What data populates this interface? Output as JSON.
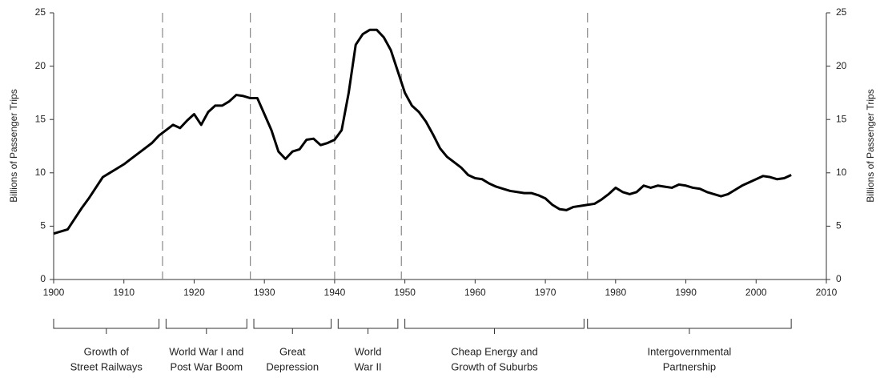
{
  "chart_data": {
    "type": "line",
    "y_label": "Billions of Passenger Trips",
    "y2_label": "Billions of Passenger Trips",
    "x": [
      1900,
      1901,
      1902,
      1903,
      1904,
      1905,
      1906,
      1907,
      1908,
      1909,
      1910,
      1911,
      1912,
      1913,
      1914,
      1915,
      1916,
      1917,
      1918,
      1919,
      1920,
      1921,
      1922,
      1923,
      1924,
      1925,
      1926,
      1927,
      1928,
      1929,
      1930,
      1931,
      1932,
      1933,
      1934,
      1935,
      1936,
      1937,
      1938,
      1939,
      1940,
      1941,
      1942,
      1943,
      1944,
      1945,
      1946,
      1947,
      1948,
      1949,
      1950,
      1951,
      1952,
      1953,
      1954,
      1955,
      1956,
      1957,
      1958,
      1959,
      1960,
      1961,
      1962,
      1963,
      1964,
      1965,
      1966,
      1967,
      1968,
      1969,
      1970,
      1971,
      1972,
      1973,
      1974,
      1975,
      1976,
      1977,
      1978,
      1979,
      1980,
      1981,
      1982,
      1983,
      1984,
      1985,
      1986,
      1987,
      1988,
      1989,
      1990,
      1991,
      1992,
      1993,
      1994,
      1995,
      1996,
      1997,
      1998,
      1999,
      2000,
      2001,
      2002,
      2003,
      2004,
      2005
    ],
    "series": [
      {
        "color": "#000000",
        "values": [
          4.3,
          4.5,
          4.7,
          5.7,
          6.7,
          7.6,
          8.6,
          9.6,
          10.0,
          10.4,
          10.8,
          11.3,
          11.8,
          12.3,
          12.8,
          13.5,
          14.0,
          14.5,
          14.2,
          14.9,
          15.5,
          14.5,
          15.7,
          16.3,
          16.3,
          16.7,
          17.3,
          17.2,
          17.0,
          17.0,
          15.5,
          14.0,
          12.0,
          11.3,
          12.0,
          12.2,
          13.1,
          13.2,
          12.6,
          12.8,
          13.1,
          14.0,
          17.5,
          22.0,
          23.0,
          23.4,
          23.4,
          22.7,
          21.5,
          19.5,
          17.5,
          16.3,
          15.7,
          14.8,
          13.6,
          12.3,
          11.5,
          11.0,
          10.5,
          9.8,
          9.5,
          9.4,
          9.0,
          8.7,
          8.5,
          8.3,
          8.2,
          8.1,
          8.1,
          7.9,
          7.6,
          7.0,
          6.6,
          6.5,
          6.8,
          6.9,
          7.0,
          7.1,
          7.5,
          8.0,
          8.6,
          8.2,
          8.0,
          8.2,
          8.8,
          8.6,
          8.8,
          8.7,
          8.6,
          8.9,
          8.8,
          8.6,
          8.5,
          8.2,
          8.0,
          7.8,
          8.0,
          8.4,
          8.8,
          9.1,
          9.4,
          9.7,
          9.6,
          9.4,
          9.5,
          9.8
        ]
      }
    ],
    "xlim": [
      1900,
      2010
    ],
    "xticks": [
      1900,
      1910,
      1920,
      1930,
      1940,
      1950,
      1960,
      1970,
      1980,
      1990,
      2000,
      2010
    ],
    "ylim": [
      0,
      25
    ],
    "yticks": [
      0,
      5,
      10,
      15,
      20,
      25
    ],
    "y2lim": [
      0,
      25
    ],
    "y2ticks": [
      0,
      5,
      10,
      15,
      20,
      25
    ],
    "dividers": [
      1915.5,
      1928,
      1940,
      1949.5,
      1976
    ],
    "eras": [
      {
        "start": 1900,
        "end": 1915,
        "label": [
          "Growth of",
          "Street Railways"
        ]
      },
      {
        "start": 1916,
        "end": 1927.5,
        "label": [
          "World War I and",
          "Post War Boom"
        ]
      },
      {
        "start": 1928.5,
        "end": 1939.5,
        "label": [
          "Great",
          "Depression"
        ]
      },
      {
        "start": 1940.5,
        "end": 1949,
        "label": [
          "World",
          "War II"
        ]
      },
      {
        "start": 1950,
        "end": 1975.5,
        "label": [
          "Cheap Energy and",
          "Growth of Suburbs"
        ]
      },
      {
        "start": 1976,
        "end": 2005,
        "label": [
          "Intergovernmental",
          "Partnership"
        ]
      }
    ]
  }
}
